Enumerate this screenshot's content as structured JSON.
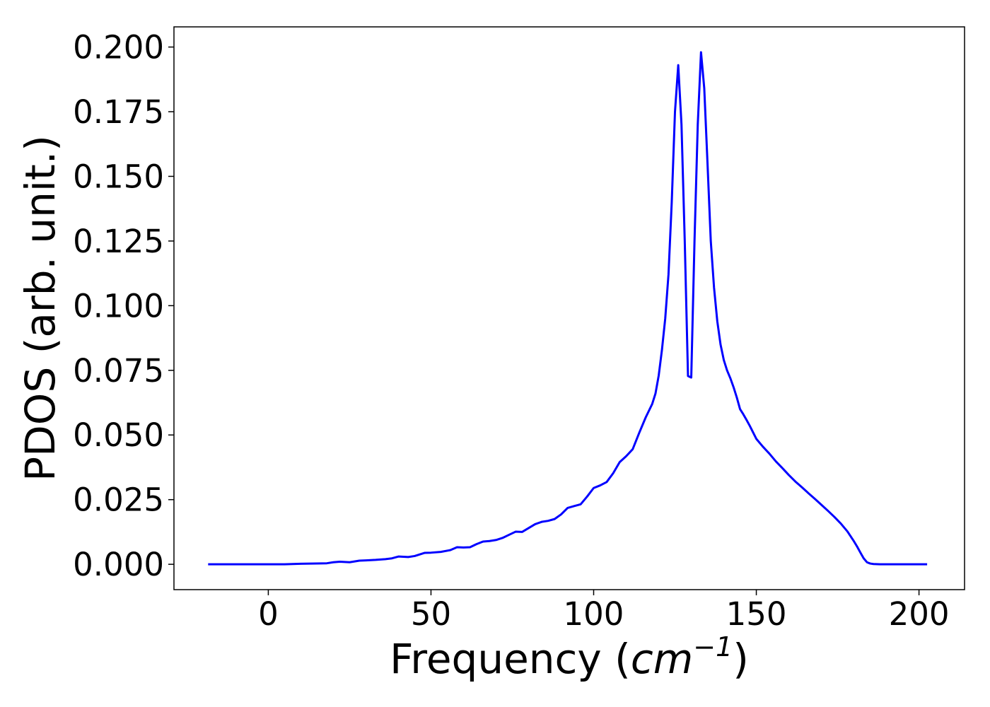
{
  "chart_data": {
    "type": "line",
    "title": "",
    "xlabel_prefix": "Frequency (",
    "xlabel_math_base": "cm",
    "xlabel_math_exp": "−1",
    "xlabel_suffix": ")",
    "ylabel": "PDOS (arb. unit.)",
    "xlim": [
      -29,
      214
    ],
    "ylim": [
      -0.0098,
      0.2078
    ],
    "xticks": [
      0,
      50,
      100,
      150,
      200
    ],
    "xtick_labels": [
      "0",
      "50",
      "100",
      "150",
      "200"
    ],
    "yticks": [
      0.0,
      0.025,
      0.05,
      0.075,
      0.1,
      0.125,
      0.15,
      0.175,
      0.2
    ],
    "ytick_labels": [
      "0.000",
      "0.025",
      "0.050",
      "0.075",
      "0.100",
      "0.125",
      "0.150",
      "0.175",
      "0.200"
    ],
    "grid": false,
    "series": [
      {
        "color": "#0000ff",
        "x": [
          -18.5,
          0,
          5,
          10,
          15,
          18,
          20,
          22,
          25,
          28,
          30,
          33,
          36,
          38,
          40,
          43,
          45,
          48,
          50,
          53,
          56,
          58,
          60,
          62,
          64,
          66,
          68,
          70,
          72,
          74,
          76,
          78,
          80,
          82,
          84,
          86,
          88,
          90,
          92,
          94,
          96,
          98,
          100,
          102,
          104,
          106,
          108,
          110,
          112,
          114,
          116,
          118,
          119,
          120,
          121,
          122,
          123,
          124,
          125,
          126,
          127,
          128,
          129,
          130,
          131,
          132,
          133,
          134,
          135,
          136,
          137,
          138,
          139,
          140,
          141,
          142,
          143,
          144,
          145,
          146,
          147,
          148,
          149,
          150,
          152,
          154,
          156,
          158,
          160,
          162,
          164,
          166,
          168,
          170,
          172,
          174,
          176,
          178,
          180,
          181,
          182,
          183,
          184,
          185,
          186,
          188,
          190,
          195,
          202.5
        ],
        "y": [
          0.0,
          0.0,
          0.0,
          0.0002,
          0.0003,
          0.0004,
          0.0008,
          0.001,
          0.0008,
          0.0014,
          0.0015,
          0.0017,
          0.002,
          0.0023,
          0.003,
          0.0028,
          0.0032,
          0.0044,
          0.0045,
          0.0048,
          0.0055,
          0.0066,
          0.0065,
          0.0066,
          0.0078,
          0.0088,
          0.009,
          0.0094,
          0.0102,
          0.0114,
          0.0126,
          0.0125,
          0.014,
          0.0155,
          0.0164,
          0.0168,
          0.0175,
          0.0193,
          0.0218,
          0.0225,
          0.0232,
          0.0262,
          0.0295,
          0.0305,
          0.0318,
          0.0352,
          0.0395,
          0.0418,
          0.0445,
          0.0508,
          0.0568,
          0.062,
          0.066,
          0.073,
          0.083,
          0.095,
          0.112,
          0.14,
          0.175,
          0.193,
          0.17,
          0.125,
          0.0728,
          0.0722,
          0.125,
          0.17,
          0.198,
          0.184,
          0.155,
          0.125,
          0.107,
          0.094,
          0.085,
          0.079,
          0.075,
          0.072,
          0.0685,
          0.0645,
          0.06,
          0.058,
          0.0558,
          0.0535,
          0.051,
          0.0485,
          0.0455,
          0.0428,
          0.0398,
          0.0372,
          0.0345,
          0.032,
          0.0298,
          0.0275,
          0.0253,
          0.023,
          0.0207,
          0.0183,
          0.0157,
          0.0127,
          0.0089,
          0.0068,
          0.0045,
          0.0023,
          0.0008,
          0.0003,
          0.0001,
          0.0,
          0.0,
          0.0,
          0.0
        ]
      }
    ]
  }
}
